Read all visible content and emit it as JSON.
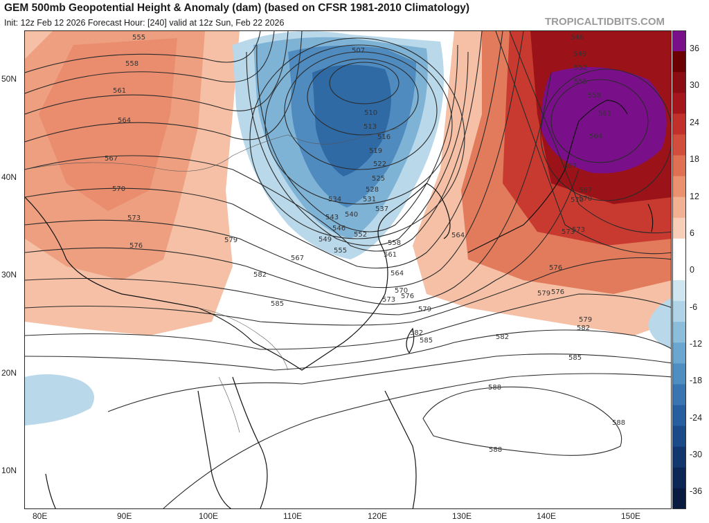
{
  "header": {
    "title": "GEM 500mb Geopotential Height & Anomaly (dam) (based on CFSR 1981-2010 Climatology)",
    "subtitle": "Init: 12z Feb 12 2026   Forecast Hour: [240]   valid at 12z Sun, Feb 22 2026",
    "brand": "TROPICALTIDBITS.COM"
  },
  "axes": {
    "lat_labels": [
      "50N",
      "40N",
      "30N",
      "20N",
      "10N"
    ],
    "lon_labels": [
      "80E",
      "90E",
      "100E",
      "110E",
      "120E",
      "130E",
      "140E",
      "150E"
    ]
  },
  "colorbar": {
    "labels": [
      "36",
      "30",
      "24",
      "18",
      "12",
      "6",
      "0",
      "-6",
      "-12",
      "-18",
      "-24",
      "-30",
      "-36"
    ],
    "colors": [
      "#7a0f8a",
      "#6b0000",
      "#8b0d12",
      "#a5161c",
      "#c2302b",
      "#d24e3c",
      "#df7052",
      "#ea926f",
      "#f2b193",
      "#f7cfb8",
      "#ffffff",
      "#ffffff",
      "#cfe5f0",
      "#b0d4e7",
      "#8cbedb",
      "#6aa6cf",
      "#4e8ec0",
      "#3975b1",
      "#275e9f",
      "#1a4a88",
      "#12366e",
      "#0c2656",
      "#081a40"
    ]
  },
  "map": {
    "contour_labels": [
      "555",
      "558",
      "561",
      "564",
      "567",
      "570",
      "573",
      "576",
      "579",
      "582",
      "585",
      "507",
      "510",
      "513",
      "516",
      "519",
      "522",
      "525",
      "528",
      "531",
      "534",
      "537",
      "540",
      "543",
      "546",
      "549",
      "552",
      "555",
      "558",
      "561",
      "564",
      "567",
      "570",
      "573",
      "576",
      "579",
      "582",
      "585",
      "588",
      "588",
      "588",
      "546",
      "549",
      "552",
      "555",
      "558",
      "561",
      "564",
      "567",
      "570",
      "573",
      "576",
      "579",
      "582",
      "585",
      "564",
      "567",
      "570",
      "573",
      "576",
      "579",
      "582"
    ]
  }
}
